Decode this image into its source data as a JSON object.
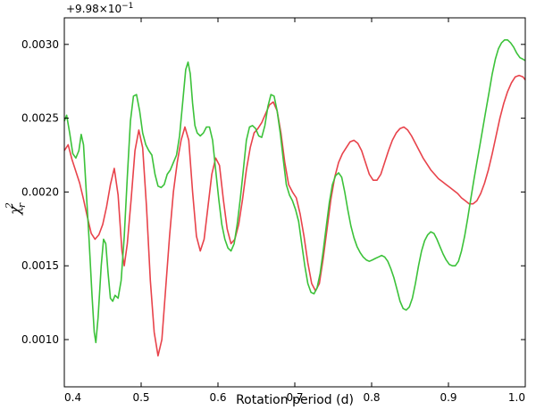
{
  "chart_data": {
    "type": "line",
    "title": "",
    "xlabel": "Rotation period (d)",
    "ylabel": "χ",
    "ylabel_superscript": "2",
    "ylabel_subscript": "r",
    "offset_text": "+9.98×10",
    "offset_exponent": "−1",
    "xlim": [
      0.4,
      1.0
    ],
    "ylim": [
      0.00068,
      0.00318
    ],
    "xticks": [
      0.4,
      0.5,
      0.6,
      0.7,
      0.8,
      0.9,
      1.0
    ],
    "xtick_labels": [
      "0.4",
      "0.5",
      "0.6",
      "0.7",
      "0.8",
      "0.9",
      "1.0"
    ],
    "yticks": [
      0.001,
      0.0015,
      0.002,
      0.0025,
      0.003
    ],
    "ytick_labels": [
      "0.0010",
      "0.0015",
      "0.0020",
      "0.0025",
      "0.0030"
    ],
    "grid": false,
    "series": [
      {
        "color": "#e8434b",
        "points": [
          [
            0.4,
            0.00228
          ],
          [
            0.405,
            0.00232
          ],
          [
            0.41,
            0.00222
          ],
          [
            0.415,
            0.00214
          ],
          [
            0.42,
            0.00206
          ],
          [
            0.425,
            0.00195
          ],
          [
            0.43,
            0.00183
          ],
          [
            0.435,
            0.00172
          ],
          [
            0.44,
            0.00168
          ],
          [
            0.445,
            0.00171
          ],
          [
            0.45,
            0.00178
          ],
          [
            0.455,
            0.0019
          ],
          [
            0.46,
            0.00205
          ],
          [
            0.465,
            0.00216
          ],
          [
            0.47,
            0.00198
          ],
          [
            0.475,
            0.0016
          ],
          [
            0.478,
            0.0015
          ],
          [
            0.482,
            0.00165
          ],
          [
            0.487,
            0.00195
          ],
          [
            0.492,
            0.00228
          ],
          [
            0.497,
            0.00242
          ],
          [
            0.502,
            0.0023
          ],
          [
            0.507,
            0.0019
          ],
          [
            0.512,
            0.0014
          ],
          [
            0.517,
            0.00105
          ],
          [
            0.522,
            0.00089
          ],
          [
            0.527,
            0.001
          ],
          [
            0.532,
            0.00135
          ],
          [
            0.537,
            0.0017
          ],
          [
            0.542,
            0.002
          ],
          [
            0.547,
            0.0022
          ],
          [
            0.552,
            0.00235
          ],
          [
            0.557,
            0.00244
          ],
          [
            0.562,
            0.00235
          ],
          [
            0.567,
            0.002
          ],
          [
            0.572,
            0.0017
          ],
          [
            0.577,
            0.0016
          ],
          [
            0.582,
            0.00168
          ],
          [
            0.587,
            0.0019
          ],
          [
            0.592,
            0.00212
          ],
          [
            0.597,
            0.00223
          ],
          [
            0.602,
            0.00218
          ],
          [
            0.607,
            0.00195
          ],
          [
            0.612,
            0.00175
          ],
          [
            0.617,
            0.00165
          ],
          [
            0.622,
            0.00168
          ],
          [
            0.627,
            0.00178
          ],
          [
            0.632,
            0.00195
          ],
          [
            0.637,
            0.00215
          ],
          [
            0.642,
            0.0023
          ],
          [
            0.647,
            0.0024
          ],
          [
            0.652,
            0.00243
          ],
          [
            0.657,
            0.00247
          ],
          [
            0.662,
            0.00253
          ],
          [
            0.667,
            0.00259
          ],
          [
            0.672,
            0.00261
          ],
          [
            0.677,
            0.00255
          ],
          [
            0.682,
            0.0024
          ],
          [
            0.687,
            0.0022
          ],
          [
            0.692,
            0.00205
          ],
          [
            0.697,
            0.002
          ],
          [
            0.702,
            0.00196
          ],
          [
            0.707,
            0.00185
          ],
          [
            0.712,
            0.0017
          ],
          [
            0.717,
            0.00152
          ],
          [
            0.722,
            0.00138
          ],
          [
            0.727,
            0.00133
          ],
          [
            0.732,
            0.00138
          ],
          [
            0.737,
            0.00155
          ],
          [
            0.742,
            0.00175
          ],
          [
            0.747,
            0.00195
          ],
          [
            0.752,
            0.0021
          ],
          [
            0.757,
            0.0022
          ],
          [
            0.762,
            0.00226
          ],
          [
            0.767,
            0.0023
          ],
          [
            0.772,
            0.00234
          ],
          [
            0.777,
            0.00235
          ],
          [
            0.782,
            0.00233
          ],
          [
            0.787,
            0.00228
          ],
          [
            0.792,
            0.0022
          ],
          [
            0.797,
            0.00212
          ],
          [
            0.802,
            0.00208
          ],
          [
            0.807,
            0.00208
          ],
          [
            0.812,
            0.00212
          ],
          [
            0.817,
            0.0022
          ],
          [
            0.822,
            0.00228
          ],
          [
            0.827,
            0.00235
          ],
          [
            0.832,
            0.0024
          ],
          [
            0.837,
            0.00243
          ],
          [
            0.842,
            0.00244
          ],
          [
            0.847,
            0.00242
          ],
          [
            0.852,
            0.00238
          ],
          [
            0.857,
            0.00233
          ],
          [
            0.862,
            0.00228
          ],
          [
            0.867,
            0.00223
          ],
          [
            0.872,
            0.00219
          ],
          [
            0.877,
            0.00215
          ],
          [
            0.882,
            0.00212
          ],
          [
            0.887,
            0.00209
          ],
          [
            0.892,
            0.00207
          ],
          [
            0.897,
            0.00205
          ],
          [
            0.902,
            0.00203
          ],
          [
            0.907,
            0.00201
          ],
          [
            0.912,
            0.00199
          ],
          [
            0.917,
            0.00196
          ],
          [
            0.922,
            0.00194
          ],
          [
            0.927,
            0.00192
          ],
          [
            0.932,
            0.00192
          ],
          [
            0.937,
            0.00194
          ],
          [
            0.942,
            0.00199
          ],
          [
            0.947,
            0.00206
          ],
          [
            0.952,
            0.00215
          ],
          [
            0.957,
            0.00226
          ],
          [
            0.962,
            0.00238
          ],
          [
            0.967,
            0.0025
          ],
          [
            0.972,
            0.0026
          ],
          [
            0.977,
            0.00268
          ],
          [
            0.982,
            0.00274
          ],
          [
            0.987,
            0.00278
          ],
          [
            0.992,
            0.00279
          ],
          [
            0.997,
            0.00278
          ],
          [
            1.0,
            0.00276
          ]
        ]
      },
      {
        "color": "#3cc23a",
        "points": [
          [
            0.4,
            0.00248
          ],
          [
            0.403,
            0.00252
          ],
          [
            0.407,
            0.0024
          ],
          [
            0.411,
            0.00226
          ],
          [
            0.415,
            0.00223
          ],
          [
            0.419,
            0.00228
          ],
          [
            0.422,
            0.00239
          ],
          [
            0.425,
            0.00232
          ],
          [
            0.428,
            0.00205
          ],
          [
            0.432,
            0.0017
          ],
          [
            0.436,
            0.0013
          ],
          [
            0.439,
            0.00105
          ],
          [
            0.441,
            0.00098
          ],
          [
            0.444,
            0.00115
          ],
          [
            0.448,
            0.0015
          ],
          [
            0.451,
            0.00168
          ],
          [
            0.454,
            0.00165
          ],
          [
            0.457,
            0.00145
          ],
          [
            0.46,
            0.00128
          ],
          [
            0.463,
            0.00126
          ],
          [
            0.466,
            0.0013
          ],
          [
            0.47,
            0.00128
          ],
          [
            0.474,
            0.0014
          ],
          [
            0.478,
            0.0017
          ],
          [
            0.482,
            0.0021
          ],
          [
            0.486,
            0.00248
          ],
          [
            0.49,
            0.00265
          ],
          [
            0.494,
            0.00266
          ],
          [
            0.498,
            0.00255
          ],
          [
            0.502,
            0.0024
          ],
          [
            0.506,
            0.00232
          ],
          [
            0.51,
            0.00228
          ],
          [
            0.514,
            0.00225
          ],
          [
            0.518,
            0.00212
          ],
          [
            0.522,
            0.00204
          ],
          [
            0.526,
            0.00203
          ],
          [
            0.53,
            0.00205
          ],
          [
            0.534,
            0.00212
          ],
          [
            0.538,
            0.00215
          ],
          [
            0.542,
            0.0022
          ],
          [
            0.546,
            0.00225
          ],
          [
            0.55,
            0.00238
          ],
          [
            0.554,
            0.0026
          ],
          [
            0.558,
            0.00283
          ],
          [
            0.561,
            0.00288
          ],
          [
            0.564,
            0.0028
          ],
          [
            0.567,
            0.0026
          ],
          [
            0.57,
            0.00245
          ],
          [
            0.573,
            0.0024
          ],
          [
            0.577,
            0.00238
          ],
          [
            0.581,
            0.0024
          ],
          [
            0.585,
            0.00244
          ],
          [
            0.589,
            0.00244
          ],
          [
            0.593,
            0.00235
          ],
          [
            0.597,
            0.00215
          ],
          [
            0.601,
            0.00195
          ],
          [
            0.605,
            0.00178
          ],
          [
            0.609,
            0.00168
          ],
          [
            0.613,
            0.00162
          ],
          [
            0.617,
            0.0016
          ],
          [
            0.621,
            0.00165
          ],
          [
            0.625,
            0.00178
          ],
          [
            0.629,
            0.00195
          ],
          [
            0.633,
            0.00215
          ],
          [
            0.637,
            0.00235
          ],
          [
            0.641,
            0.00244
          ],
          [
            0.645,
            0.00245
          ],
          [
            0.649,
            0.00243
          ],
          [
            0.653,
            0.00238
          ],
          [
            0.657,
            0.00237
          ],
          [
            0.661,
            0.00245
          ],
          [
            0.665,
            0.00258
          ],
          [
            0.669,
            0.00266
          ],
          [
            0.673,
            0.00265
          ],
          [
            0.677,
            0.00255
          ],
          [
            0.681,
            0.0024
          ],
          [
            0.685,
            0.00222
          ],
          [
            0.689,
            0.00205
          ],
          [
            0.693,
            0.00198
          ],
          [
            0.697,
            0.00194
          ],
          [
            0.701,
            0.00188
          ],
          [
            0.705,
            0.0018
          ],
          [
            0.709,
            0.00165
          ],
          [
            0.713,
            0.0015
          ],
          [
            0.717,
            0.00138
          ],
          [
            0.721,
            0.00132
          ],
          [
            0.725,
            0.00131
          ],
          [
            0.729,
            0.00135
          ],
          [
            0.733,
            0.00145
          ],
          [
            0.737,
            0.0016
          ],
          [
            0.741,
            0.00177
          ],
          [
            0.745,
            0.00193
          ],
          [
            0.749,
            0.00205
          ],
          [
            0.753,
            0.00211
          ],
          [
            0.757,
            0.00213
          ],
          [
            0.761,
            0.0021
          ],
          [
            0.765,
            0.002
          ],
          [
            0.769,
            0.00188
          ],
          [
            0.773,
            0.00177
          ],
          [
            0.777,
            0.00169
          ],
          [
            0.781,
            0.00163
          ],
          [
            0.785,
            0.00159
          ],
          [
            0.789,
            0.00156
          ],
          [
            0.793,
            0.00154
          ],
          [
            0.797,
            0.00153
          ],
          [
            0.801,
            0.00154
          ],
          [
            0.805,
            0.00155
          ],
          [
            0.809,
            0.00156
          ],
          [
            0.813,
            0.00157
          ],
          [
            0.817,
            0.00156
          ],
          [
            0.821,
            0.00153
          ],
          [
            0.825,
            0.00148
          ],
          [
            0.829,
            0.00142
          ],
          [
            0.833,
            0.00134
          ],
          [
            0.837,
            0.00126
          ],
          [
            0.841,
            0.00121
          ],
          [
            0.845,
            0.0012
          ],
          [
            0.849,
            0.00122
          ],
          [
            0.853,
            0.00128
          ],
          [
            0.857,
            0.00138
          ],
          [
            0.861,
            0.0015
          ],
          [
            0.865,
            0.0016
          ],
          [
            0.869,
            0.00167
          ],
          [
            0.873,
            0.00171
          ],
          [
            0.877,
            0.00173
          ],
          [
            0.881,
            0.00172
          ],
          [
            0.885,
            0.00168
          ],
          [
            0.889,
            0.00163
          ],
          [
            0.893,
            0.00158
          ],
          [
            0.897,
            0.00154
          ],
          [
            0.901,
            0.00151
          ],
          [
            0.905,
            0.0015
          ],
          [
            0.909,
            0.0015
          ],
          [
            0.913,
            0.00153
          ],
          [
            0.917,
            0.0016
          ],
          [
            0.921,
            0.0017
          ],
          [
            0.925,
            0.00182
          ],
          [
            0.929,
            0.00195
          ],
          [
            0.933,
            0.00208
          ],
          [
            0.937,
            0.0022
          ],
          [
            0.941,
            0.00232
          ],
          [
            0.945,
            0.00244
          ],
          [
            0.949,
            0.00256
          ],
          [
            0.953,
            0.00268
          ],
          [
            0.957,
            0.0028
          ],
          [
            0.961,
            0.0029
          ],
          [
            0.965,
            0.00297
          ],
          [
            0.969,
            0.00301
          ],
          [
            0.973,
            0.00303
          ],
          [
            0.977,
            0.00303
          ],
          [
            0.981,
            0.00301
          ],
          [
            0.985,
            0.00298
          ],
          [
            0.989,
            0.00294
          ],
          [
            0.993,
            0.00291
          ],
          [
            0.997,
            0.0029
          ],
          [
            1.0,
            0.00289
          ]
        ]
      }
    ]
  }
}
